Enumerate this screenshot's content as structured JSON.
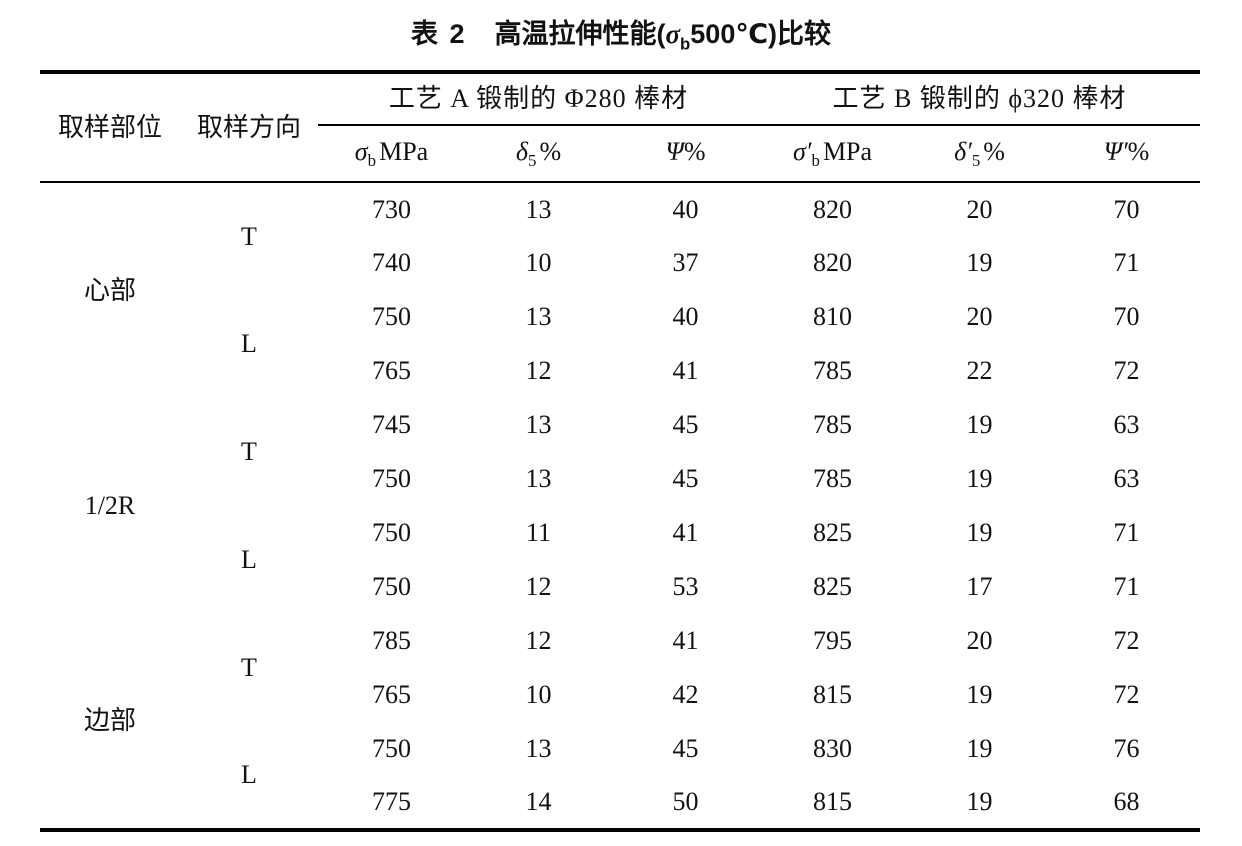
{
  "page": {
    "background": "#ffffff",
    "ink": "#121212"
  },
  "table": {
    "title": {
      "index": "表 2",
      "text_before_symbol": "高温拉伸性能(",
      "symbol": "σ",
      "symbol_sub": "b",
      "text_after_symbol": "500℃)比较"
    },
    "header": {
      "location": "取样部位",
      "direction": "取样方向",
      "group_a": "工艺 A 锻制的 Φ280 棒材",
      "group_b": "工艺 B 锻制的 ϕ320 棒材",
      "subcols": [
        {
          "sym": "σ",
          "sub": "b",
          "unit": "MPa"
        },
        {
          "sym": "δ",
          "sub": "5",
          "unit": "%"
        },
        {
          "sym": "Ψ",
          "sub": "",
          "unit": "%"
        },
        {
          "sym": "σ′",
          "sub": "b",
          "unit": "MPa"
        },
        {
          "sym": "δ′",
          "sub": "5",
          "unit": "%"
        },
        {
          "sym": "Ψ′",
          "sub": "",
          "unit": "%"
        }
      ]
    },
    "rows": [
      {
        "location": "心部",
        "direction": "T",
        "values": [
          "730",
          "13",
          "40",
          "820",
          "20",
          "70"
        ]
      },
      {
        "values": [
          "740",
          "10",
          "37",
          "820",
          "19",
          "71"
        ]
      },
      {
        "direction": "L",
        "values": [
          "750",
          "13",
          "40",
          "810",
          "20",
          "70"
        ]
      },
      {
        "values": [
          "765",
          "12",
          "41",
          "785",
          "22",
          "72"
        ]
      },
      {
        "location": "1/2R",
        "direction": "T",
        "values": [
          "745",
          "13",
          "45",
          "785",
          "19",
          "63"
        ]
      },
      {
        "values": [
          "750",
          "13",
          "45",
          "785",
          "19",
          "63"
        ]
      },
      {
        "direction": "L",
        "values": [
          "750",
          "11",
          "41",
          "825",
          "19",
          "71"
        ]
      },
      {
        "values": [
          "750",
          "12",
          "53",
          "825",
          "17",
          "71"
        ]
      },
      {
        "location": "边部",
        "direction": "T",
        "values": [
          "785",
          "12",
          "41",
          "795",
          "20",
          "72"
        ]
      },
      {
        "values": [
          "765",
          "10",
          "42",
          "815",
          "19",
          "72"
        ]
      },
      {
        "direction": "L",
        "values": [
          "750",
          "13",
          "45",
          "830",
          "19",
          "76"
        ]
      },
      {
        "values": [
          "775",
          "14",
          "50",
          "815",
          "19",
          "68"
        ]
      }
    ]
  },
  "chart_data": {
    "type": "table",
    "title": "表2 高温拉伸性能(σb500℃)比较",
    "columns": [
      "取样部位",
      "取样方向",
      "σb MPa",
      "δ5 %",
      "Ψ%",
      "σ′b MPa",
      "δ′5 %",
      "Ψ′%"
    ],
    "column_groups": [
      {
        "label": "工艺A 锻制的 Φ280 棒材",
        "columns": [
          "σb MPa",
          "δ5 %",
          "Ψ%"
        ]
      },
      {
        "label": "工艺B 锻制的 ϕ320 棒材",
        "columns": [
          "σ′b MPa",
          "δ′5 %",
          "Ψ′%"
        ]
      }
    ],
    "rows": [
      [
        "心部",
        "T",
        730,
        13,
        40,
        820,
        20,
        70
      ],
      [
        "心部",
        "T",
        740,
        10,
        37,
        820,
        19,
        71
      ],
      [
        "心部",
        "L",
        750,
        13,
        40,
        810,
        20,
        70
      ],
      [
        "心部",
        "L",
        765,
        12,
        41,
        785,
        22,
        72
      ],
      [
        "1/2R",
        "T",
        745,
        13,
        45,
        785,
        19,
        63
      ],
      [
        "1/2R",
        "T",
        750,
        13,
        45,
        785,
        19,
        63
      ],
      [
        "1/2R",
        "L",
        750,
        11,
        41,
        825,
        19,
        71
      ],
      [
        "1/2R",
        "L",
        750,
        12,
        53,
        825,
        17,
        71
      ],
      [
        "边部",
        "T",
        785,
        12,
        41,
        795,
        20,
        72
      ],
      [
        "边部",
        "T",
        765,
        10,
        42,
        815,
        19,
        72
      ],
      [
        "边部",
        "L",
        750,
        13,
        45,
        830,
        19,
        76
      ],
      [
        "边部",
        "L",
        775,
        14,
        50,
        815,
        19,
        68
      ]
    ]
  }
}
